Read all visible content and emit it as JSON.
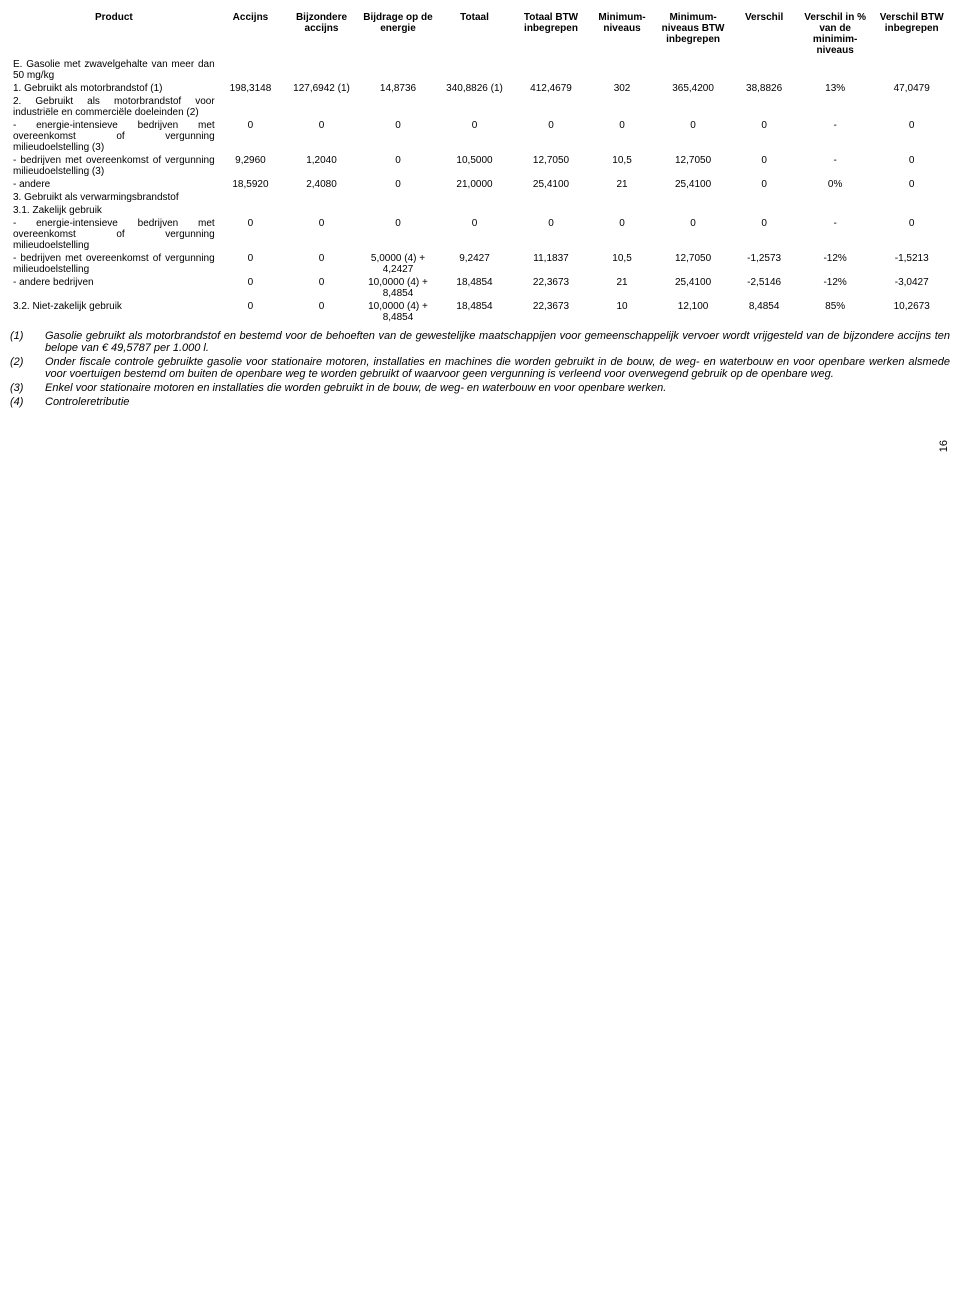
{
  "headers": {
    "c0": "Product",
    "c1": "Accijns",
    "c2": "Bijzondere accijns",
    "c3": "Bijdrage op de energie",
    "c4": "Totaal",
    "c5": "Totaal BTW inbegrepen",
    "c6": "Minimum-niveaus",
    "c7": "Minimum-niveaus BTW inbegrepen",
    "c8": "Verschil",
    "c9": "Verschil in % van de minimim-niveaus",
    "c10": "Verschil BTW inbegrepen"
  },
  "rows": [
    {
      "product": "E.  Gasolie met zwavelgehalte van meer dan 50 mg/kg",
      "c": [
        "",
        "",
        "",
        "",
        "",
        "",
        "",
        "",
        "",
        ""
      ]
    },
    {
      "product": "1.  Gebruikt als motorbrandstof (1)",
      "c": [
        "198,3148",
        "127,6942 (1)",
        "14,8736",
        "340,8826 (1)",
        "412,4679",
        "302",
        "365,4200",
        "38,8826",
        "13%",
        "47,0479"
      ]
    },
    {
      "product": "2.  Gebruikt als motorbrandstof voor industriële en commerciële doeleinden (2)",
      "c": [
        "",
        "",
        "",
        "",
        "",
        "",
        "",
        "",
        "",
        ""
      ]
    },
    {
      "product": "-   energie-intensieve bedrijven met overeenkomst of vergunning milieudoelstelling (3)",
      "c": [
        "0",
        "0",
        "0",
        "0",
        "0",
        "0",
        "0",
        "0",
        "-",
        "0"
      ]
    },
    {
      "product": "-   bedrijven met overeenkomst of vergunning milieudoelstelling (3)",
      "c": [
        "9,2960",
        "1,2040",
        "0",
        "10,5000",
        "12,7050",
        "10,5",
        "12,7050",
        "0",
        "-",
        "0"
      ]
    },
    {
      "product": "-   andere",
      "c": [
        "18,5920",
        "2,4080",
        "0",
        "21,0000",
        "25,4100",
        "21",
        "25,4100",
        "0",
        "0%",
        "0"
      ]
    },
    {
      "product": "3.  Gebruikt als verwarmingsbrandstof",
      "c": [
        "",
        "",
        "",
        "",
        "",
        "",
        "",
        "",
        "",
        ""
      ]
    },
    {
      "product": "3.1. Zakelijk gebruik",
      "c": [
        "",
        "",
        "",
        "",
        "",
        "",
        "",
        "",
        "",
        ""
      ]
    },
    {
      "product": "-   energie-intensieve bedrijven met overeenkomst of vergunning milieudoelstelling",
      "c": [
        "0",
        "0",
        "0",
        "0",
        "0",
        "0",
        "0",
        "0",
        "-",
        "0"
      ]
    },
    {
      "product": "-   bedrijven met overeenkomst of vergunning milieudoelstelling",
      "c": [
        "0",
        "0",
        "5,0000 (4) + 4,2427",
        "9,2427",
        "11,1837",
        "10,5",
        "12,7050",
        "-1,2573",
        "-12%",
        "-1,5213"
      ]
    },
    {
      "product": "-   andere bedrijven",
      "c": [
        "0",
        "0",
        "10,0000 (4) + 8,4854",
        "18,4854",
        "22,3673",
        "21",
        "25,4100",
        "-2,5146",
        "-12%",
        "-3,0427"
      ]
    },
    {
      "product": "3.2. Niet-zakelijk gebruik",
      "c": [
        "0",
        "0",
        "10,0000 (4) + 8,4854",
        "18,4854",
        "22,3673",
        "10",
        "12,100",
        "8,4854",
        "85%",
        "10,2673"
      ]
    }
  ],
  "footnotes": [
    {
      "key": "(1)",
      "text": "Gasolie gebruikt als motorbrandstof en bestemd voor de behoeften van de gewestelijke maatschappijen voor gemeenschappelijk vervoer wordt vrijgesteld van de bijzondere accijns ten belope van € 49,5787 per 1.000 l."
    },
    {
      "key": "(2)",
      "text": "Onder fiscale controle gebruikte gasolie voor stationaire motoren, installaties en machines die worden gebruikt in de bouw, de weg- en waterbouw en voor openbare werken alsmede voor voertuigen bestemd om buiten de openbare weg te worden gebruikt of waarvoor geen vergunning is verleend voor overwegend gebruik op de openbare weg."
    },
    {
      "key": "(3)",
      "text": "Enkel voor stationaire motoren en installaties die worden gebruikt in de bouw, de weg- en waterbouw en voor openbare werken."
    },
    {
      "key": "(4)",
      "text": "Controleretributie"
    }
  ],
  "pagenum": "16",
  "colwidths": [
    "190px",
    "60px",
    "70px",
    "70px",
    "70px",
    "70px",
    "60px",
    "70px",
    "60px",
    "70px",
    "70px"
  ]
}
